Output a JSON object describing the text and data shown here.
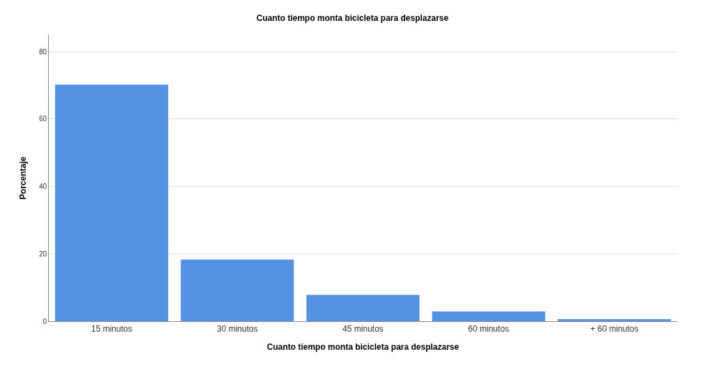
{
  "chart_data": {
    "type": "bar",
    "title": "Cuanto tiempo monta bicicleta para desplazarse",
    "xlabel": "Cuanto tiempo monta bicicleta para desplazarse",
    "ylabel": "Porcentaje",
    "categories": [
      "15 minutos",
      "30 minutos",
      "45 minutos",
      "60 minutos",
      "+ 60 minutos"
    ],
    "values": [
      70.2,
      18.3,
      7.8,
      2.9,
      0.6
    ],
    "color": "#5592e2",
    "ylim": [
      0,
      85
    ],
    "yticks": [
      0,
      20,
      40,
      60,
      80
    ],
    "grid": "y"
  }
}
